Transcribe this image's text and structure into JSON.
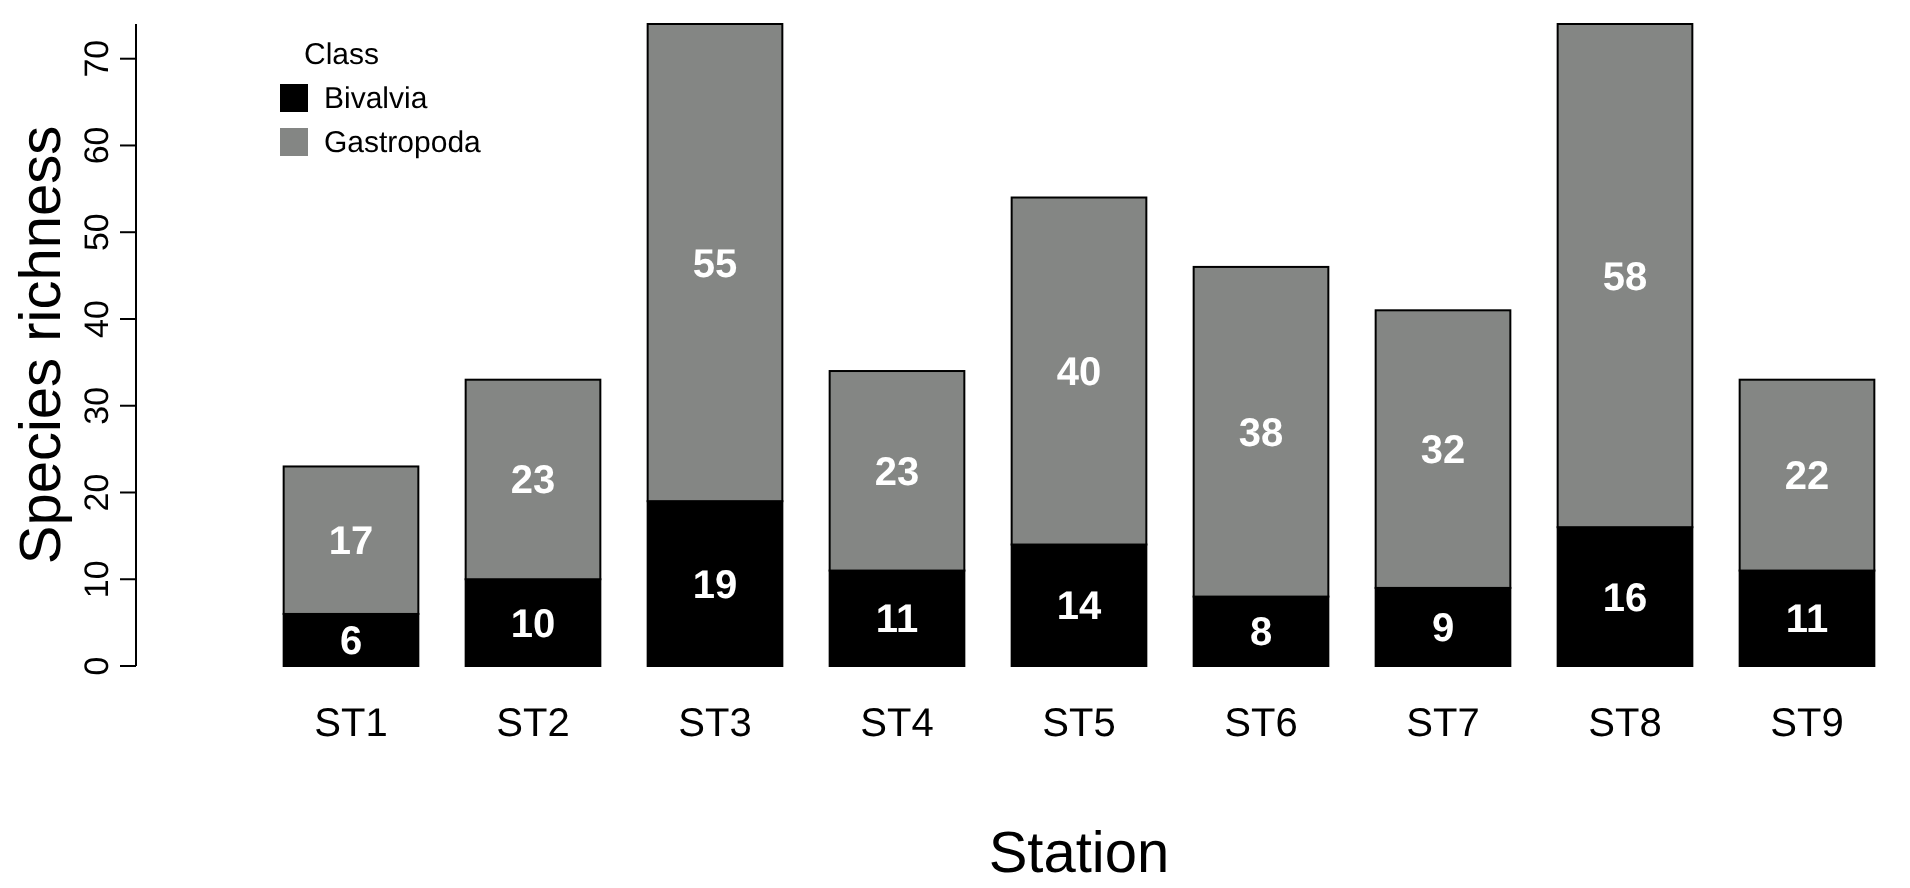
{
  "chart_data": {
    "type": "bar",
    "stacked": true,
    "xlabel": "Station",
    "ylabel": "Species richness",
    "legend_title": "Class",
    "legend": "top left",
    "data_labels": true,
    "categories": [
      "ST1",
      "ST2",
      "ST3",
      "ST4",
      "ST5",
      "ST6",
      "ST7",
      "ST8",
      "ST9"
    ],
    "series": [
      {
        "name": "Bivalvia",
        "color": "#000000",
        "values": [
          6,
          10,
          19,
          11,
          14,
          8,
          9,
          16,
          11
        ]
      },
      {
        "name": "Gastropoda",
        "color": "#848684",
        "values": [
          17,
          23,
          55,
          23,
          40,
          38,
          32,
          58,
          22
        ]
      }
    ],
    "ylim": [
      0,
      74
    ],
    "yticks": [
      0,
      10,
      20,
      30,
      40,
      50,
      60,
      70
    ]
  }
}
